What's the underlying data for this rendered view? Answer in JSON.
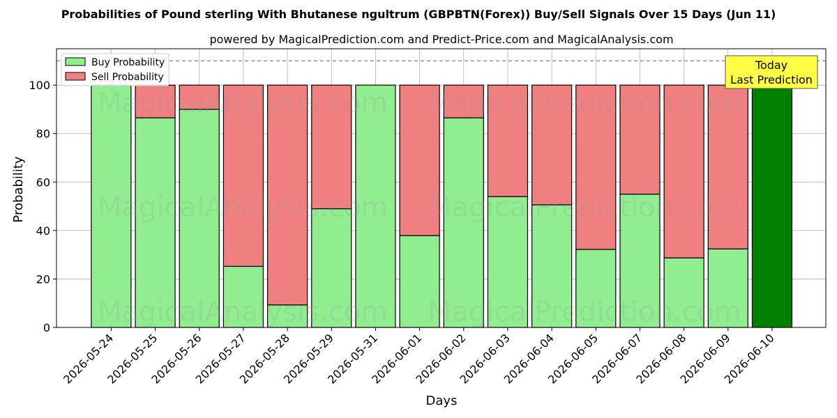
{
  "chart_data": {
    "type": "bar",
    "title": "Probabilities of Pound sterling With Bhutanese ngultrum (GBPBTN(Forex)) Buy/Sell Signals Over 15 Days (Jun 11)",
    "subtitle": "powered by MagicalPrediction.com and Predict-Price.com and MagicalAnalysis.com",
    "xlabel": "Days",
    "ylabel": "Probability",
    "ylim": [
      0,
      115
    ],
    "yticks": [
      0,
      20,
      40,
      60,
      80,
      100
    ],
    "grid": true,
    "legend_position": "top-left",
    "threshold_line": 110,
    "categories": [
      "2026-05-24",
      "2026-05-25",
      "2026-05-26",
      "2026-05-27",
      "2026-05-28",
      "2026-05-29",
      "2026-05-31",
      "2026-06-01",
      "2026-06-02",
      "2026-06-03",
      "2026-06-04",
      "2026-06-05",
      "2026-06-07",
      "2026-06-08",
      "2026-06-09",
      "2026-06-10"
    ],
    "series": [
      {
        "name": "Buy Probability",
        "color": "#90ee90",
        "values": [
          100,
          86.5,
          90,
          25.2,
          9.3,
          49,
          100,
          37.9,
          86.5,
          54,
          50.6,
          32.2,
          55,
          28.7,
          32.4,
          100
        ]
      },
      {
        "name": "Sell Probability",
        "color": "#f08080",
        "values": [
          0,
          13.5,
          10,
          74.8,
          90.7,
          51,
          0,
          62.1,
          13.5,
          46,
          49.4,
          67.8,
          45,
          71.3,
          67.6,
          0
        ]
      }
    ],
    "highlight": {
      "index": 15,
      "color": "#008000",
      "label_lines": [
        "Today",
        "Last Prediction"
      ]
    },
    "watermarks": [
      "MagicalAnalysis.com",
      "MagicalPrediction.com"
    ]
  }
}
